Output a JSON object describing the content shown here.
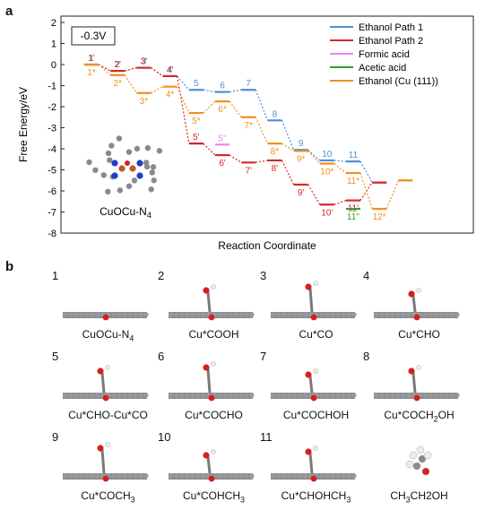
{
  "panel_a_letter": "a",
  "panel_b_letter": "b",
  "chart_data": {
    "type": "line",
    "potential_label": "-0.3V",
    "xlabel": "Reaction Coordinate",
    "ylabel": "Free Energy/eV",
    "ylim": [
      -8,
      2.3
    ],
    "yticks": [
      2,
      1,
      0,
      -1,
      -2,
      -3,
      -4,
      -5,
      -6,
      -7,
      -8
    ],
    "grid": false,
    "legend_position": "top-right",
    "catalyst_label": "CuOCu-N",
    "catalyst_label_sub": "4",
    "series": [
      {
        "name": "Ethanol Path 1",
        "color": "#4a90d9",
        "levels": [
          {
            "step": 1,
            "value": 0.0,
            "label": "1"
          },
          {
            "step": 2,
            "value": -0.3,
            "label": "2"
          },
          {
            "step": 3,
            "value": -0.15,
            "label": "3"
          },
          {
            "step": 4,
            "value": -0.55,
            "label": "4"
          },
          {
            "step": 5,
            "value": -1.2,
            "label": "5"
          },
          {
            "step": 6,
            "value": -1.3,
            "label": "6"
          },
          {
            "step": 7,
            "value": -1.2,
            "label": "7"
          },
          {
            "step": 8,
            "value": -2.65,
            "label": "8"
          },
          {
            "step": 9,
            "value": -4.05,
            "label": "9"
          },
          {
            "step": 10,
            "value": -4.55,
            "label": "10"
          },
          {
            "step": 11,
            "value": -4.6,
            "label": "11"
          },
          {
            "step": 12,
            "value": -5.6,
            "label": ""
          }
        ]
      },
      {
        "name": "Ethanol Path 2",
        "color": "#d62728",
        "levels": [
          {
            "step": 1,
            "value": 0.0,
            "label": "1'"
          },
          {
            "step": 2,
            "value": -0.3,
            "label": "2'"
          },
          {
            "step": 3,
            "value": -0.15,
            "label": "3'"
          },
          {
            "step": 4,
            "value": -0.55,
            "label": "4'"
          },
          {
            "step": 5,
            "value": -3.75,
            "label": "5'"
          },
          {
            "step": 6,
            "value": -4.3,
            "label": "6'"
          },
          {
            "step": 7,
            "value": -4.65,
            "label": "7'"
          },
          {
            "step": 8,
            "value": -4.55,
            "label": "8'"
          },
          {
            "step": 9,
            "value": -5.7,
            "label": "9'"
          },
          {
            "step": 10,
            "value": -6.65,
            "label": "10'"
          },
          {
            "step": 11,
            "value": -6.45,
            "label": "11'"
          },
          {
            "step": 12,
            "value": -5.6,
            "label": ""
          }
        ]
      },
      {
        "name": "Formic acid",
        "color": "#e08be8",
        "levels": [
          {
            "step": 6,
            "value": -3.8,
            "label": "5''"
          }
        ]
      },
      {
        "name": "Acetic acid",
        "color": "#2ca02c",
        "levels": [
          {
            "step": 11,
            "value": -6.85,
            "label": "11''"
          }
        ]
      },
      {
        "name": "Ethanol (Cu (111))",
        "color": "#f0901e",
        "levels": [
          {
            "step": 1,
            "value": 0.0,
            "label": "1*"
          },
          {
            "step": 2,
            "value": -0.5,
            "label": "2*"
          },
          {
            "step": 3,
            "value": -1.35,
            "label": "3*"
          },
          {
            "step": 4,
            "value": -1.05,
            "label": "4*"
          },
          {
            "step": 5,
            "value": -2.3,
            "label": "5*"
          },
          {
            "step": 6,
            "value": -1.75,
            "label": "6*"
          },
          {
            "step": 7,
            "value": -2.5,
            "label": "7*"
          },
          {
            "step": 8,
            "value": -3.75,
            "label": "8*"
          },
          {
            "step": 9,
            "value": -4.1,
            "label": "9*"
          },
          {
            "step": 10,
            "value": -4.7,
            "label": "10*"
          },
          {
            "step": 11,
            "value": -5.15,
            "label": "11*"
          },
          {
            "step": 12,
            "value": -6.85,
            "label": "12*"
          },
          {
            "step": 13,
            "value": -5.5,
            "label": ""
          }
        ]
      }
    ]
  },
  "structures": [
    {
      "num": "1",
      "caption": "CuOCu-N",
      "caption_sub": "4",
      "caption_tail": ""
    },
    {
      "num": "2",
      "caption": "Cu*COOH",
      "caption_sub": "",
      "caption_tail": ""
    },
    {
      "num": "3",
      "caption": "Cu*CO",
      "caption_sub": "",
      "caption_tail": ""
    },
    {
      "num": "4",
      "caption": "Cu*CHO",
      "caption_sub": "",
      "caption_tail": ""
    },
    {
      "num": "5",
      "caption": "Cu*CHO-Cu*CO",
      "caption_sub": "",
      "caption_tail": ""
    },
    {
      "num": "6",
      "caption": "Cu*COCHO",
      "caption_sub": "",
      "caption_tail": ""
    },
    {
      "num": "7",
      "caption": "Cu*COCHOH",
      "caption_sub": "",
      "caption_tail": ""
    },
    {
      "num": "8",
      "caption": "Cu*COCH",
      "caption_sub": "2",
      "caption_tail": "OH"
    },
    {
      "num": "9",
      "caption": "Cu*COCH",
      "caption_sub": "3",
      "caption_tail": ""
    },
    {
      "num": "10",
      "caption": "Cu*COHCH",
      "caption_sub": "3",
      "caption_tail": ""
    },
    {
      "num": "11",
      "caption": "Cu*CHOHCH",
      "caption_sub": "3",
      "caption_tail": ""
    },
    {
      "num": "",
      "caption": "CH",
      "caption_sub": "3",
      "caption_tail": "CH2OH"
    }
  ]
}
